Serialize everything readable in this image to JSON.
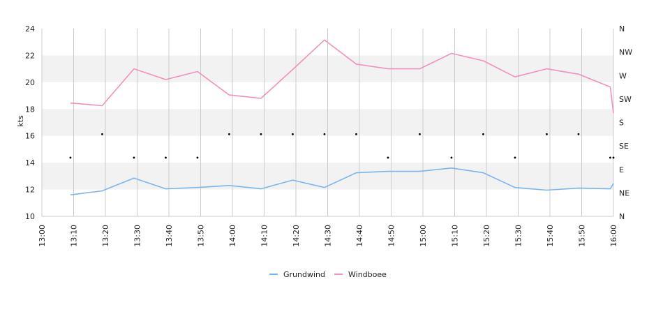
{
  "chart_data": {
    "type": "line",
    "ylabel": "kts",
    "ylim": [
      10,
      24
    ],
    "y_ticks": [
      10,
      12,
      14,
      16,
      18,
      20,
      22,
      24
    ],
    "x_ticks": [
      "13:00",
      "13:10",
      "13:20",
      "13:30",
      "13:40",
      "13:50",
      "14:00",
      "14:10",
      "14:20",
      "14:30",
      "14:40",
      "14:50",
      "15:00",
      "15:10",
      "15:20",
      "15:30",
      "15:40",
      "15:50",
      "16:00"
    ],
    "right_axis": {
      "labels": [
        "N",
        "NE",
        "E",
        "SE",
        "S",
        "SW",
        "W",
        "NW",
        "N"
      ]
    },
    "grid": true,
    "legend_position": "bottom",
    "colors": {
      "grundwind": "#7cb5ec",
      "windboee": "#f28fbf",
      "marker": "#000000",
      "band": "#f2f2f2",
      "gridline": "#cccccc"
    },
    "series": [
      {
        "name": "Grundwind",
        "x": [
          "13:09",
          "13:19",
          "13:29",
          "13:39",
          "13:49",
          "13:59",
          "14:09",
          "14:19",
          "14:29",
          "14:39",
          "14:49",
          "14:59",
          "15:09",
          "15:19",
          "15:29",
          "15:39",
          "15:49",
          "15:59",
          "16:00"
        ],
        "values": [
          11.6,
          11.9,
          12.85,
          12.05,
          12.15,
          12.3,
          12.05,
          12.7,
          12.15,
          13.25,
          13.35,
          13.35,
          13.6,
          13.25,
          12.15,
          11.95,
          12.1,
          12.05,
          12.45
        ]
      },
      {
        "name": "Windboee",
        "x": [
          "13:09",
          "13:19",
          "13:29",
          "13:39",
          "13:49",
          "13:59",
          "14:09",
          "14:19",
          "14:29",
          "14:39",
          "14:49",
          "14:59",
          "15:09",
          "15:19",
          "15:29",
          "15:39",
          "15:49",
          "15:59",
          "16:00"
        ],
        "values": [
          18.45,
          18.25,
          21.0,
          20.2,
          20.8,
          19.05,
          18.8,
          20.95,
          23.15,
          21.35,
          21.0,
          21.0,
          22.15,
          21.6,
          20.4,
          21.0,
          20.6,
          19.65,
          17.7
        ]
      }
    ],
    "direction_markers": {
      "x": [
        "13:09",
        "13:19",
        "13:29",
        "13:39",
        "13:49",
        "13:59",
        "14:09",
        "14:19",
        "14:29",
        "14:39",
        "14:49",
        "14:59",
        "15:09",
        "15:19",
        "15:29",
        "15:39",
        "15:49",
        "15:59",
        "16:00"
      ],
      "direction": [
        "SE",
        "S",
        "SE",
        "SE",
        "SE",
        "S",
        "S",
        "S",
        "S",
        "S",
        "SE",
        "S",
        "SE",
        "S",
        "SE",
        "S",
        "S",
        "SE",
        "SE"
      ]
    }
  }
}
